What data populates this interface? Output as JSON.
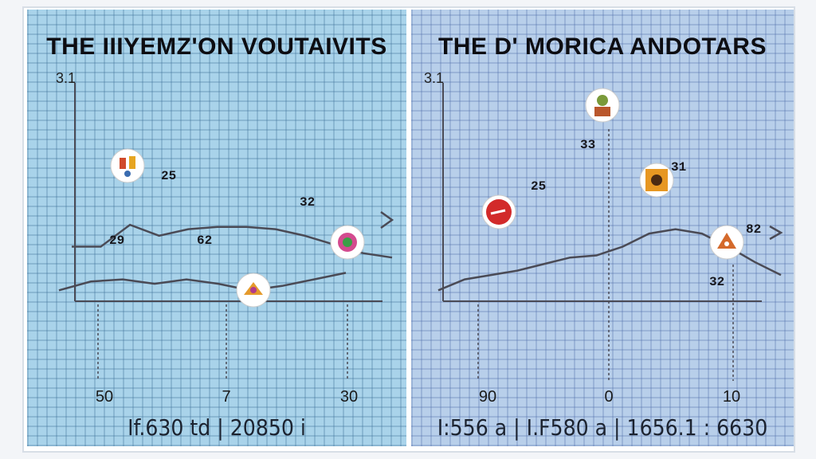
{
  "chart_data": [
    {
      "type": "line",
      "title": "THE IIIYEMZ'ON VOUTAIVITS",
      "y_top_tick": "3.1",
      "x_ticks": [
        "50",
        "7",
        "30"
      ],
      "footer": "If.630 td | 20850 i",
      "series": [
        {
          "values": [
            0.25,
            0.25,
            0.35,
            0.3,
            0.33,
            0.34,
            0.34,
            0.33,
            0.3,
            0.26,
            0.22,
            0.2
          ],
          "labels": [
            {
              "at": 5,
              "text": "25"
            },
            {
              "at": 9,
              "text": "32"
            }
          ]
        },
        {
          "values": [
            0.05,
            0.09,
            0.1,
            0.08,
            0.1,
            0.08,
            0.05,
            0.07,
            0.1,
            0.13
          ],
          "labels": [
            {
              "at": 2,
              "text": "29"
            },
            {
              "at": 5,
              "text": "62"
            }
          ]
        }
      ],
      "icons": [
        "mascot-icon",
        "flower-badge-icon",
        "crowd-badge-icon"
      ]
    },
    {
      "type": "line",
      "title": "THE D' MORICA ANDOTARS",
      "y_top_tick": "3.1",
      "x_ticks": [
        "90",
        "0",
        "10"
      ],
      "footer": "I:556 a | I.F580 a | 1656.1 : 6630",
      "series": [
        {
          "values": [
            0.05,
            0.1,
            0.12,
            0.14,
            0.17,
            0.2,
            0.21,
            0.25,
            0.31,
            0.33,
            0.31,
            0.25,
            0.18,
            0.12
          ],
          "labels": [
            {
              "at": 6,
              "text": "25"
            },
            {
              "at": 12,
              "text": "82"
            }
          ]
        }
      ],
      "annotations": [
        "33",
        "31",
        "32"
      ],
      "icons": [
        "red-badge-icon",
        "sushi-chef-icon",
        "orange-poster-icon",
        "pizza-character-icon"
      ]
    }
  ]
}
